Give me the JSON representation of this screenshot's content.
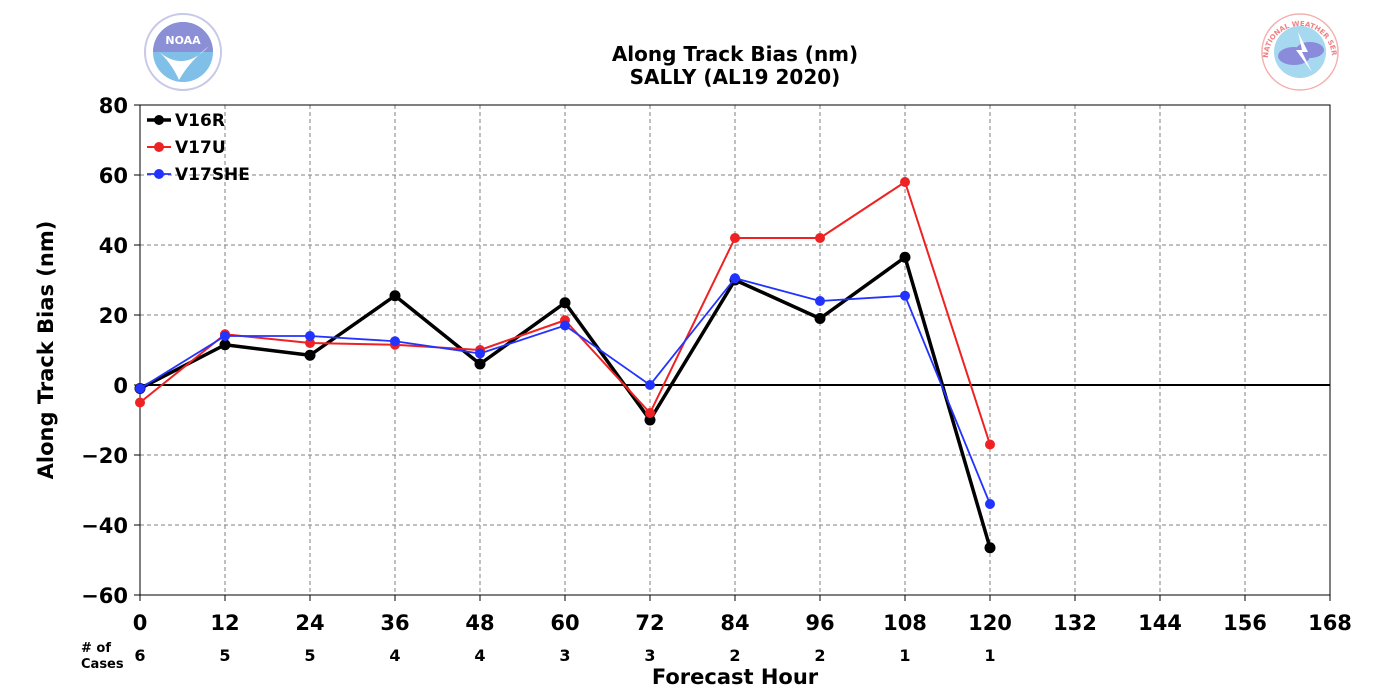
{
  "title_line1": "Along Track Bias (nm)",
  "title_line2": "SALLY (AL19 2020)",
  "logos": {
    "left": {
      "name": "noaa-logo",
      "text": "NOAA",
      "colors": [
        "#1f7bc1",
        "#7fbfe8",
        "#a0a3d9"
      ]
    },
    "right": {
      "name": "nws-logo",
      "text": "NATIONAL WEATHER SERVICE",
      "colors": [
        "#f08080",
        "#8b8bdc",
        "#a6d8f0"
      ]
    }
  },
  "cases": {
    "label_line1": "# of",
    "label_line2": "Cases",
    "counts": [
      "6",
      "5",
      "5",
      "4",
      "4",
      "3",
      "3",
      "2",
      "2",
      "1",
      "1"
    ]
  },
  "chart_data": {
    "type": "line",
    "title": "Along Track Bias (nm)\nSALLY (AL19 2020)",
    "xlabel": "Forecast Hour",
    "ylabel": "Along Track Bias (nm)",
    "xlim": [
      0,
      168
    ],
    "ylim": [
      -60,
      80
    ],
    "xticks": [
      0,
      12,
      24,
      36,
      48,
      60,
      72,
      84,
      96,
      108,
      120,
      132,
      144,
      156,
      168
    ],
    "xtick_labels": [
      "0",
      "12",
      "24",
      "36",
      "48",
      "60",
      "72",
      "84",
      "96",
      "108",
      "120",
      "132",
      "144",
      "156",
      "168"
    ],
    "yticks": [
      -60,
      -40,
      -20,
      0,
      20,
      40,
      60,
      80
    ],
    "ytick_labels": [
      "−60",
      "−40",
      "−20",
      "0",
      "20",
      "40",
      "60",
      "80"
    ],
    "grid": true,
    "zero_line": true,
    "legend_position": "top-left",
    "x": [
      0,
      12,
      24,
      36,
      48,
      60,
      72,
      84,
      96,
      108,
      120
    ],
    "series": [
      {
        "name": "V16R",
        "color": "#000000",
        "width": 3.5,
        "values": [
          -1,
          11.5,
          8.5,
          25.5,
          6,
          23.5,
          -10,
          30,
          19,
          36.5,
          -46.5
        ]
      },
      {
        "name": "V17U",
        "color": "#ee2222",
        "width": 2,
        "values": [
          -5,
          14.5,
          12,
          11.5,
          10,
          18.5,
          -8,
          42,
          42,
          58,
          -17
        ]
      },
      {
        "name": "V17SHE",
        "color": "#2233ff",
        "width": 1.8,
        "values": [
          -1,
          14,
          14,
          12.5,
          9,
          17,
          0,
          30.5,
          24,
          25.5,
          -34
        ]
      }
    ]
  }
}
